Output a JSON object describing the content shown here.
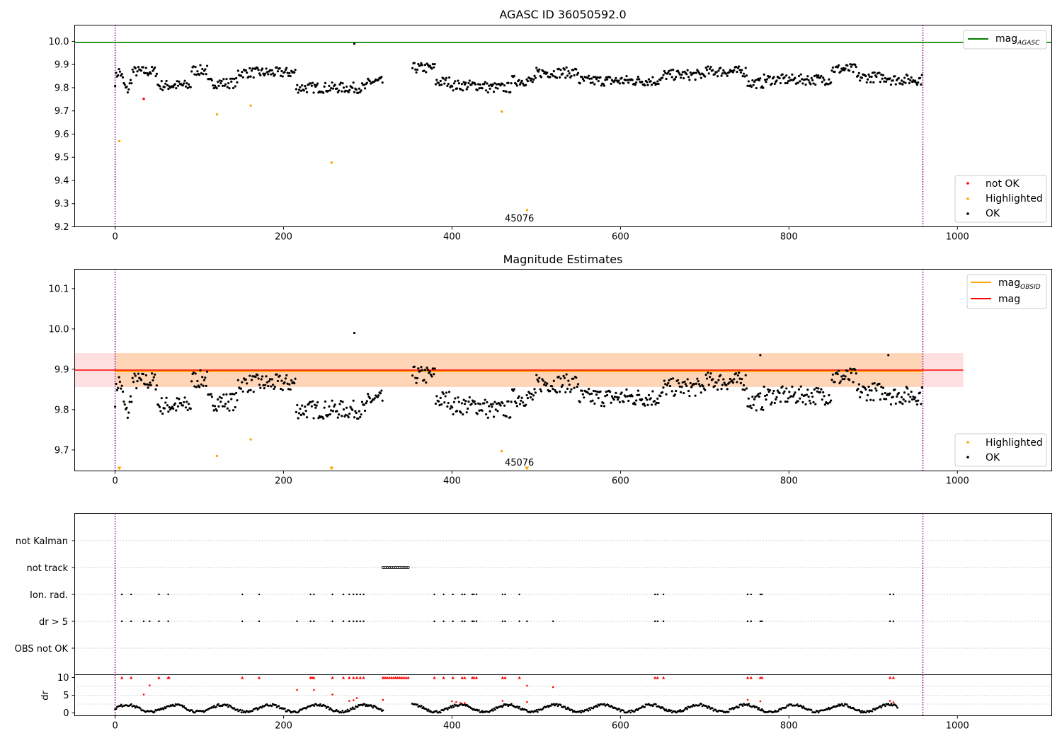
{
  "chart_data": [
    {
      "type": "scatter",
      "title": "AGASC ID 36050592.0",
      "xlim": [
        -48,
        1112
      ],
      "ylim": [
        9.2,
        10.07
      ],
      "xticks": [
        0,
        200,
        400,
        600,
        800,
        1000
      ],
      "yticks": [
        9.2,
        9.3,
        9.4,
        9.5,
        9.6,
        9.7,
        9.8,
        9.9,
        10.0
      ],
      "yticklabels": [
        "9.2",
        "9.3",
        "9.4",
        "9.5",
        "9.6",
        "9.7",
        "9.8",
        "9.9",
        "10.0"
      ],
      "hlines": [
        {
          "name": "mag_AGASC",
          "label_main": "mag",
          "label_sub": "AGASC",
          "y": 9.995,
          "color": "#008000"
        }
      ],
      "vlines": [
        0,
        959
      ],
      "not_ok": [
        [
          34,
          9.752
        ]
      ],
      "highlighted": [
        [
          5,
          9.57
        ],
        [
          121,
          9.685
        ],
        [
          161,
          9.723
        ],
        [
          257,
          9.477
        ],
        [
          459,
          9.697
        ],
        [
          489,
          9.272
        ]
      ],
      "outliers": [
        [
          284,
          9.99
        ]
      ],
      "annotation": {
        "text": "45076",
        "x": 480,
        "y": 9.235
      },
      "legend_lines": {
        "placement": "upper right"
      },
      "legend_points": {
        "placement": "lower right",
        "entries": [
          {
            "label": "not OK",
            "color": "#ff0000"
          },
          {
            "label": "Highlighted",
            "color": "#ffa500"
          },
          {
            "label": "OK",
            "color": "#000000"
          }
        ]
      }
    },
    {
      "type": "scatter",
      "title": "Magnitude Estimates",
      "xlim": [
        -48,
        1112
      ],
      "ylim": [
        9.648,
        10.148
      ],
      "xticks": [
        0,
        200,
        400,
        600,
        800,
        1000
      ],
      "yticks": [
        9.7,
        9.8,
        9.9,
        10.0,
        10.1
      ],
      "yticklabels": [
        "9.7",
        "9.8",
        "9.9",
        "10.0",
        "10.1"
      ],
      "vlines": [
        0,
        959
      ],
      "mag": 9.898,
      "mag_band": [
        9.856,
        9.94
      ],
      "mag_obsid": 9.895,
      "band_x_end": 1007,
      "highlighted": [
        [
          121,
          9.685
        ],
        [
          161,
          9.726
        ],
        [
          459,
          9.697
        ]
      ],
      "lower_markers": [
        5,
        257,
        489
      ],
      "outliers": [
        [
          284,
          9.99
        ],
        [
          766,
          9.935
        ],
        [
          918,
          9.935
        ]
      ],
      "annotation": {
        "text": "45076",
        "x": 480,
        "y": 9.668
      },
      "legend_lines": {
        "placement": "upper right",
        "entries": [
          {
            "label_main": "mag",
            "label_sub": "OBSID",
            "color": "#ffa500"
          },
          {
            "label_main": "mag",
            "label_sub": "",
            "color": "#ff0000"
          }
        ]
      },
      "legend_points": {
        "placement": "lower right",
        "entries": [
          {
            "label": "Highlighted",
            "color": "#ffa500"
          },
          {
            "label": "OK",
            "color": "#000000"
          }
        ]
      }
    },
    {
      "type": "scatter",
      "title": "",
      "xlim": [
        -48,
        1112
      ],
      "categories": [
        "not Kalman",
        "not track",
        "Ion. rad.",
        "dr > 5",
        "OBS not OK"
      ],
      "not_track_range": [
        318,
        348
      ],
      "ion_rad_x": [
        8,
        19,
        52,
        63,
        151,
        171,
        232,
        236,
        258,
        271,
        278,
        283,
        287,
        291,
        295,
        379,
        390,
        401,
        412,
        415,
        424,
        426,
        429,
        460,
        463,
        480,
        641,
        644,
        651,
        751,
        755,
        766,
        768,
        920,
        924
      ],
      "dr5_x": [
        8,
        19,
        34,
        41,
        52,
        63,
        151,
        171,
        216,
        232,
        236,
        258,
        271,
        278,
        283,
        287,
        291,
        295,
        379,
        390,
        401,
        412,
        415,
        424,
        426,
        429,
        460,
        463,
        480,
        489,
        520,
        641,
        644,
        651,
        751,
        755,
        766,
        768,
        920,
        924
      ]
    },
    {
      "type": "scatter",
      "title": "",
      "ylabel": "dr",
      "xlim": [
        -48,
        1112
      ],
      "ylim": [
        -0.8,
        10.8
      ],
      "yticks": [
        0,
        5,
        10
      ],
      "yticklabels": [
        "0",
        "5",
        "10"
      ],
      "xticks": [
        0,
        200,
        400,
        600,
        800,
        1000
      ],
      "xticklabels": [
        "0",
        "200",
        "400",
        "600",
        "800",
        "1000"
      ],
      "red_triangles_x": [
        8,
        19,
        52,
        63,
        64,
        151,
        171,
        232,
        234,
        236,
        258,
        271,
        278,
        283,
        287,
        291,
        295,
        379,
        390,
        401,
        412,
        415,
        424,
        426,
        429,
        460,
        463,
        480,
        641,
        644,
        651,
        751,
        755,
        766,
        768,
        920,
        924
      ],
      "red_dots": [
        [
          34,
          5.2
        ],
        [
          41,
          7.8
        ],
        [
          216,
          6.5
        ],
        [
          236,
          6.5
        ],
        [
          258,
          5.2
        ],
        [
          278,
          3.4
        ],
        [
          283,
          3.6
        ],
        [
          287,
          4.2
        ],
        [
          318,
          3.7
        ],
        [
          400,
          3.3
        ],
        [
          405,
          3.1
        ],
        [
          410,
          2.8
        ],
        [
          415,
          2.8
        ],
        [
          460,
          3.4
        ],
        [
          489,
          7.7
        ],
        [
          489,
          3.1
        ],
        [
          520,
          7.3
        ],
        [
          751,
          3.7
        ],
        [
          766,
          3.3
        ],
        [
          920,
          3.4
        ],
        [
          924,
          3.0
        ]
      ]
    }
  ]
}
